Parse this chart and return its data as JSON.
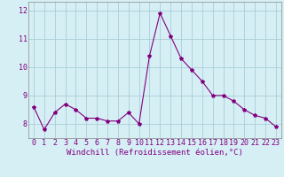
{
  "x": [
    0,
    1,
    2,
    3,
    4,
    5,
    6,
    7,
    8,
    9,
    10,
    11,
    12,
    13,
    14,
    15,
    16,
    17,
    18,
    19,
    20,
    21,
    22,
    23
  ],
  "y": [
    8.6,
    7.8,
    8.4,
    8.7,
    8.5,
    8.2,
    8.2,
    8.1,
    8.1,
    8.4,
    8.0,
    10.4,
    11.9,
    11.1,
    10.3,
    9.9,
    9.5,
    9.0,
    9.0,
    8.8,
    8.5,
    8.3,
    8.2,
    7.9
  ],
  "line_color": "#800080",
  "marker": "*",
  "marker_size": 3,
  "xlabel": "Windchill (Refroidissement éolien,°C)",
  "xlim_left": -0.5,
  "xlim_right": 23.5,
  "ylim": [
    7.5,
    12.3
  ],
  "yticks": [
    8,
    9,
    10,
    11,
    12
  ],
  "xticks": [
    0,
    1,
    2,
    3,
    4,
    5,
    6,
    7,
    8,
    9,
    10,
    11,
    12,
    13,
    14,
    15,
    16,
    17,
    18,
    19,
    20,
    21,
    22,
    23
  ],
  "bg_color": "#d6eff5",
  "grid_color": "#aacdd8",
  "label_color": "#800080",
  "tick_color": "#800080",
  "xlabel_fontsize": 6.5,
  "tick_fontsize": 6.0,
  "line_width": 0.8
}
